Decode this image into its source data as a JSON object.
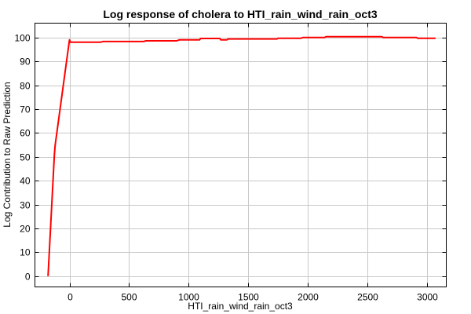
{
  "chart_data": {
    "type": "line",
    "title": "Log response of cholera to HTI_rain_wind_rain_oct3",
    "xlabel": "HTI_rain_wind_rain_oct3",
    "ylabel": "Log Contribution to Raw Prediction",
    "xlim": [
      -290,
      3160
    ],
    "ylim": [
      -4.5,
      106
    ],
    "x_ticks": [
      0,
      500,
      1000,
      1500,
      2000,
      2500,
      3000
    ],
    "y_ticks": [
      0,
      10,
      20,
      30,
      40,
      50,
      60,
      70,
      80,
      90,
      100
    ],
    "grid": true,
    "series": [
      {
        "color": "#ff0000",
        "x": [
          -180,
          -130,
          -127,
          -120,
          0,
          8,
          20,
          260,
          280,
          620,
          640,
          900,
          920,
          1090,
          1100,
          1260,
          1270,
          1320,
          1330,
          1740,
          1750,
          1940,
          1960,
          2140,
          2150,
          2620,
          2630,
          2910,
          2920,
          3070
        ],
        "y": [
          0,
          48,
          51,
          55,
          99,
          98,
          98,
          98,
          98.3,
          98.3,
          98.6,
          98.6,
          99,
          99,
          99.6,
          99.6,
          99,
          99,
          99.4,
          99.4,
          99.7,
          99.7,
          100,
          100,
          100.3,
          100.3,
          100,
          100,
          99.7,
          99.7
        ]
      }
    ]
  }
}
